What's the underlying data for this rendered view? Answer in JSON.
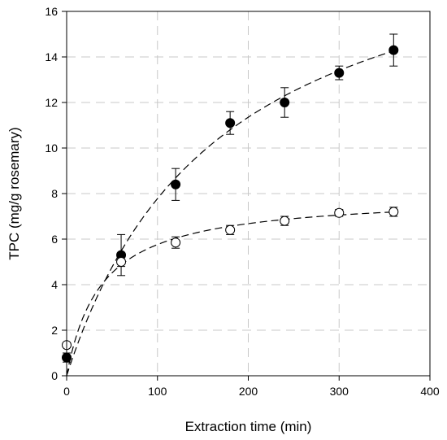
{
  "chart_data": {
    "type": "scatter",
    "title": "",
    "xlabel": "Extraction time (min)",
    "ylabel": "TPC (mg/g rosemary)",
    "xlim": [
      0,
      400
    ],
    "ylim": [
      0,
      16
    ],
    "xticks": [
      0,
      100,
      200,
      300,
      400
    ],
    "yticks": [
      0,
      2,
      4,
      6,
      8,
      10,
      12,
      14,
      16
    ],
    "grid": true,
    "legend": "none",
    "series": [
      {
        "marker": "filled-circle",
        "color": "#000000",
        "x": [
          0,
          60,
          120,
          180,
          240,
          300,
          360
        ],
        "y": [
          0.8,
          5.3,
          8.4,
          11.1,
          12.0,
          13.3,
          14.3
        ],
        "error": [
          0.2,
          0.9,
          0.7,
          0.5,
          0.65,
          0.3,
          0.7
        ],
        "fit": {
          "form": "y = a*x/(b+x)",
          "a": 21.0,
          "b": 170
        }
      },
      {
        "marker": "open-circle",
        "color": "#000000",
        "x": [
          0,
          60,
          120,
          180,
          240,
          300,
          360
        ],
        "y": [
          1.35,
          5.0,
          5.85,
          6.4,
          6.8,
          7.15,
          7.2
        ],
        "error": [
          0.1,
          0.2,
          0.25,
          0.2,
          0.2,
          0.15,
          0.2
        ],
        "fit": {
          "form": "y = a*x/(b+x)",
          "a": 7.95,
          "b": 38
        }
      }
    ]
  }
}
